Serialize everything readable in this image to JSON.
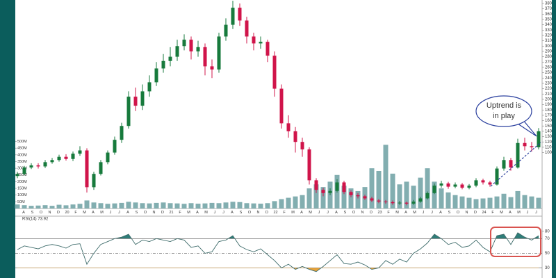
{
  "chart_data": {
    "type": "candlestick",
    "rsi_label": "RSI(14) 73.92",
    "annotation": [
      "Uptrend is",
      "in play"
    ],
    "up_color": "#177a3c",
    "down_color": "#d0144a",
    "volume_color": "#82aeb0",
    "rsi_color": "#3d6b6a",
    "overbought_fill": "#2e7d78",
    "oversold_fill": "#e8a33a",
    "month_labels": [
      "A",
      "S",
      "O",
      "N",
      "D",
      "20",
      "F",
      "M",
      "A",
      "M",
      "J",
      "J",
      "A",
      "S",
      "O",
      "N",
      "D",
      "21",
      "F",
      "M",
      "A",
      "M",
      "J",
      "J",
      "A",
      "S",
      "O",
      "N",
      "D",
      "22",
      "F",
      "M",
      "A",
      "M",
      "J",
      "J",
      "A",
      "S",
      "O",
      "N",
      "D",
      "23",
      "F",
      "M",
      "A",
      "M",
      "J",
      "J",
      "A",
      "S",
      "O",
      "N",
      "D",
      "24",
      "F",
      "M",
      "A",
      "M",
      "J",
      "J"
    ],
    "open": [
      56,
      60,
      72,
      76,
      74,
      82,
      86,
      92,
      88,
      98,
      104,
      35,
      60,
      82,
      100,
      124,
      150,
      205,
      188,
      215,
      232,
      258,
      272,
      280,
      300,
      312,
      290,
      298,
      262,
      256,
      318,
      340,
      372,
      348,
      318,
      305,
      308,
      282,
      220,
      155,
      140,
      120,
      106,
      48,
      30,
      24,
      28,
      44,
      26,
      20,
      18,
      14,
      10,
      8,
      7,
      5,
      6,
      4,
      8,
      14,
      24,
      38,
      42,
      36,
      40,
      34,
      38,
      48,
      44,
      40,
      70,
      86,
      72,
      118,
      112,
      110
    ],
    "high": [
      64,
      75,
      80,
      80,
      86,
      90,
      96,
      97,
      102,
      112,
      108,
      64,
      86,
      104,
      130,
      156,
      215,
      222,
      228,
      245,
      270,
      285,
      298,
      312,
      322,
      318,
      310,
      305,
      275,
      325,
      352,
      385,
      380,
      355,
      325,
      318,
      312,
      290,
      228,
      170,
      148,
      128,
      110,
      52,
      34,
      33,
      50,
      47,
      29,
      24,
      21,
      17,
      13,
      11,
      10,
      9,
      8,
      11,
      17,
      27,
      42,
      47,
      45,
      44,
      43,
      41,
      52,
      51,
      47,
      74,
      92,
      90,
      126,
      128,
      120,
      146
    ],
    "low": [
      52,
      57,
      69,
      70,
      71,
      79,
      83,
      85,
      84,
      94,
      25,
      30,
      57,
      78,
      96,
      118,
      145,
      178,
      180,
      205,
      225,
      250,
      262,
      272,
      292,
      275,
      280,
      245,
      240,
      250,
      310,
      332,
      338,
      305,
      292,
      295,
      270,
      205,
      145,
      128,
      100,
      92,
      40,
      24,
      18,
      20,
      25,
      22,
      16,
      14,
      11,
      7,
      5,
      4,
      2,
      2,
      1,
      2,
      6,
      12,
      22,
      34,
      32,
      33,
      31,
      31,
      35,
      40,
      36,
      38,
      66,
      66,
      70,
      104,
      102,
      106
    ],
    "close": [
      60,
      72,
      76,
      74,
      82,
      86,
      92,
      88,
      98,
      104,
      35,
      60,
      82,
      100,
      124,
      150,
      205,
      188,
      215,
      232,
      258,
      272,
      280,
      300,
      312,
      290,
      298,
      262,
      256,
      318,
      340,
      372,
      348,
      318,
      305,
      308,
      282,
      220,
      155,
      140,
      120,
      106,
      48,
      30,
      24,
      28,
      44,
      26,
      20,
      18,
      14,
      10,
      8,
      7,
      5,
      6,
      4,
      8,
      14,
      24,
      38,
      42,
      36,
      40,
      34,
      38,
      48,
      44,
      40,
      70,
      86,
      72,
      118,
      112,
      110,
      140
    ],
    "volume": [
      30,
      25,
      20,
      22,
      25,
      20,
      28,
      24,
      30,
      35,
      60,
      45,
      40,
      35,
      38,
      42,
      50,
      45,
      40,
      38,
      42,
      45,
      40,
      38,
      35,
      40,
      36,
      38,
      42,
      40,
      45,
      50,
      48,
      40,
      38,
      36,
      40,
      55,
      70,
      80,
      90,
      100,
      150,
      180,
      160,
      200,
      250,
      170,
      150,
      130,
      160,
      300,
      280,
      475,
      260,
      180,
      200,
      170,
      230,
      300,
      200,
      150,
      120,
      100,
      90,
      80,
      70,
      75,
      80,
      90,
      110,
      85,
      130,
      100,
      90,
      80
    ],
    "rsi": [
      55,
      60,
      58,
      56,
      60,
      62,
      60,
      57,
      62,
      63,
      35,
      50,
      62,
      66,
      70,
      72,
      76,
      62,
      68,
      66,
      70,
      68,
      66,
      70,
      68,
      58,
      60,
      50,
      52,
      66,
      68,
      74,
      60,
      55,
      52,
      56,
      48,
      40,
      30,
      35,
      28,
      32,
      28,
      25,
      32,
      40,
      48,
      36,
      35,
      38,
      34,
      28,
      30,
      40,
      35,
      42,
      38,
      50,
      56,
      64,
      76,
      70,
      62,
      65,
      58,
      60,
      68,
      58,
      52,
      74,
      76,
      62,
      78,
      72,
      68,
      74
    ],
    "ylim": [
      -5,
      386.5
    ],
    "yticks": [
      100,
      110,
      120,
      130,
      140,
      150,
      160,
      170,
      180,
      190,
      200,
      210,
      220,
      230,
      240,
      250,
      260,
      270,
      280,
      290,
      300,
      310,
      320,
      330,
      340,
      350,
      360,
      370,
      380
    ],
    "vlim": [
      0,
      1555
    ],
    "vticks": [
      {
        "value": 50,
        "label": "50M"
      },
      {
        "value": 100,
        "label": "100M"
      },
      {
        "value": 150,
        "label": "150M"
      },
      {
        "value": 200,
        "label": "200M"
      },
      {
        "value": 250,
        "label": "250M"
      },
      {
        "value": 300,
        "label": "300M"
      },
      {
        "value": 350,
        "label": "350M"
      },
      {
        "value": 400,
        "label": "400M"
      },
      {
        "value": 450,
        "label": "450M"
      },
      {
        "value": 500,
        "label": "500M"
      }
    ],
    "rlim": [
      20,
      95
    ],
    "rticks": [
      30,
      50,
      70,
      80
    ]
  }
}
